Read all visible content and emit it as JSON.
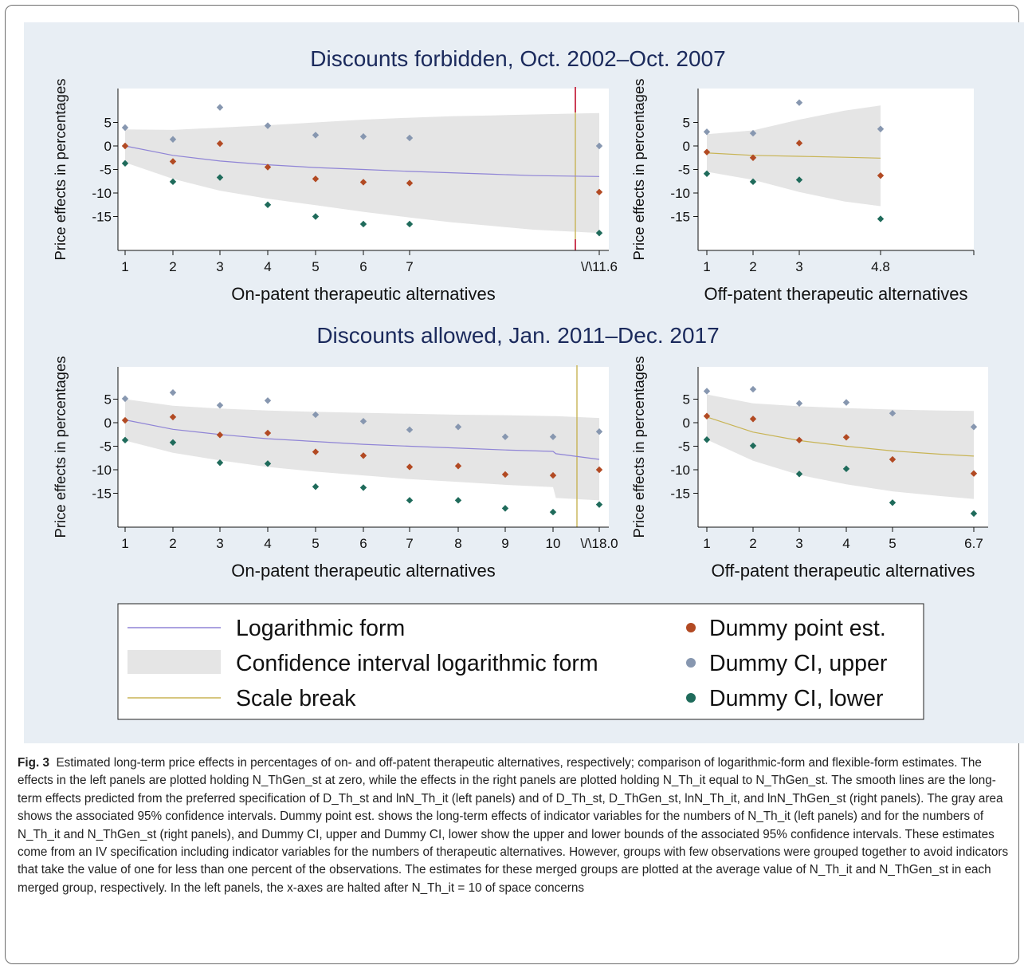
{
  "colors": {
    "fit_line_on": "#8f84d6",
    "fit_line_off": "#c8b455",
    "ci_band": "#e5e5e5",
    "point_est": "#b24a23",
    "ci_upper": "#8797b0",
    "ci_lower": "#1f6b5b",
    "scale_break": "#c8b455",
    "scale_break_top": "#c4153c",
    "plot_bg": "#e8eef4",
    "title_text": "#1b2a5c"
  },
  "chart_data": [
    {
      "id": "top-left",
      "type": "scatter",
      "panel_title": "Discounts forbidden, Oct. 2002–Oct. 2007",
      "xlabel": "On-patent therapeutic alternatives",
      "ylabel": "Price effects in percentages",
      "x_ticks": [
        "1",
        "2",
        "3",
        "4",
        "5",
        "6",
        "7",
        "\\/\\11.6"
      ],
      "y_ticks": [
        "5",
        "0",
        "-5",
        "-10",
        "-15"
      ],
      "ylim": [
        -22,
        12
      ],
      "scale_break_at": "11.6",
      "x": [
        1,
        2,
        3,
        4,
        5,
        6,
        7,
        11.6
      ],
      "point_est": [
        0,
        -3.3,
        0.5,
        -4.5,
        -7,
        -7.7,
        -7.9,
        -9.8
      ],
      "ci_upper": [
        3.9,
        1.4,
        8.2,
        4.3,
        2.3,
        2,
        1.7,
        0
      ],
      "ci_lower": [
        -3.7,
        -7.6,
        -6.7,
        -12.5,
        -15,
        -16.6,
        -16.6,
        -18.5
      ],
      "log_fit": [
        [
          1,
          0
        ],
        [
          2,
          -2
        ],
        [
          3,
          -3.2
        ],
        [
          4,
          -4
        ],
        [
          5,
          -4.6
        ],
        [
          6,
          -5
        ],
        [
          7,
          -5.4
        ],
        [
          8,
          -5.7
        ],
        [
          9,
          -6
        ],
        [
          10,
          -6.3
        ],
        [
          11.6,
          -6.5
        ]
      ],
      "ci_band_upper": [
        [
          1,
          3.5
        ],
        [
          2,
          3.4
        ],
        [
          3,
          3.9
        ],
        [
          4,
          4.4
        ],
        [
          5,
          5
        ],
        [
          6,
          5.6
        ],
        [
          7,
          6
        ],
        [
          8,
          6.3
        ],
        [
          9,
          6.5
        ],
        [
          10,
          6.7
        ],
        [
          11.6,
          7
        ]
      ],
      "ci_band_lower": [
        [
          1,
          -3.5
        ],
        [
          2,
          -7
        ],
        [
          3,
          -9.5
        ],
        [
          4,
          -11.2
        ],
        [
          5,
          -12.6
        ],
        [
          6,
          -14
        ],
        [
          7,
          -15.2
        ],
        [
          8,
          -16.2
        ],
        [
          9,
          -17
        ],
        [
          10,
          -17.8
        ],
        [
          11.6,
          -18.5
        ]
      ]
    },
    {
      "id": "top-right",
      "type": "scatter",
      "xlabel": "Off-patent therapeutic alternatives",
      "ylabel": "Price effects in percentages",
      "x_ticks": [
        "1",
        "2",
        "3",
        "4.8"
      ],
      "y_ticks": [
        "5",
        "0",
        "-5",
        "-10",
        "-15"
      ],
      "ylim": [
        -22,
        12
      ],
      "x": [
        1,
        2,
        3,
        4.8
      ],
      "point_est": [
        -1.3,
        -2.5,
        0.6,
        -6.3
      ],
      "ci_upper": [
        3,
        2.7,
        9.2,
        3.6
      ],
      "ci_lower": [
        -5.9,
        -7.6,
        -7.2,
        -15.5
      ],
      "log_fit": [
        [
          1,
          -1.5
        ],
        [
          2,
          -2
        ],
        [
          3,
          -2.2
        ],
        [
          4,
          -2.4
        ],
        [
          4.8,
          -2.6
        ]
      ],
      "ci_band_upper": [
        [
          1,
          2.5
        ],
        [
          2,
          3.3
        ],
        [
          3,
          5.6
        ],
        [
          4,
          7.5
        ],
        [
          4.8,
          8.6
        ]
      ],
      "ci_band_lower": [
        [
          1,
          -5.5
        ],
        [
          2,
          -7.2
        ],
        [
          3,
          -9.8
        ],
        [
          4,
          -11.8
        ],
        [
          4.8,
          -12.8
        ]
      ]
    },
    {
      "id": "bottom-left",
      "type": "scatter",
      "panel_title": "Discounts allowed, Jan. 2011–Dec. 2017",
      "xlabel": "On-patent therapeutic alternatives",
      "ylabel": "Price effects in percentages",
      "x_ticks": [
        "1",
        "2",
        "3",
        "4",
        "5",
        "6",
        "7",
        "8",
        "9",
        "10",
        "\\/\\18.0"
      ],
      "y_ticks": [
        "5",
        "0",
        "-5",
        "-10",
        "-15"
      ],
      "ylim": [
        -22,
        12
      ],
      "scale_break_at": "18.0",
      "x": [
        1,
        2,
        3,
        4,
        5,
        6,
        7,
        8,
        9,
        10,
        18
      ],
      "point_est": [
        0.5,
        1.2,
        -2.6,
        -2.2,
        -6.2,
        -7,
        -9.4,
        -9.2,
        -11,
        -11.2,
        -10
      ],
      "ci_upper": [
        5.1,
        6.4,
        3.7,
        4.7,
        1.7,
        0.3,
        -1.5,
        -0.9,
        -3,
        -3,
        -1.9
      ],
      "ci_lower": [
        -3.7,
        -4.2,
        -8.5,
        -8.7,
        -13.6,
        -13.8,
        -16.5,
        -16.5,
        -18.2,
        -19,
        -17.4
      ],
      "log_fit": [
        [
          1,
          0.6
        ],
        [
          2,
          -1.4
        ],
        [
          3,
          -2.5
        ],
        [
          4,
          -3.4
        ],
        [
          5,
          -4
        ],
        [
          6,
          -4.6
        ],
        [
          7,
          -5
        ],
        [
          8,
          -5.4
        ],
        [
          9,
          -5.8
        ],
        [
          10,
          -6.1
        ],
        [
          10.5,
          -6.6
        ],
        [
          18,
          -7.8
        ]
      ],
      "ci_band_upper": [
        [
          1,
          5
        ],
        [
          2,
          3.6
        ],
        [
          3,
          3
        ],
        [
          4,
          2.6
        ],
        [
          5,
          2.3
        ],
        [
          6,
          2.1
        ],
        [
          7,
          1.9
        ],
        [
          8,
          1.7
        ],
        [
          9,
          1.6
        ],
        [
          10,
          1.4
        ],
        [
          10.5,
          1.4
        ],
        [
          18,
          1
        ]
      ],
      "ci_band_lower": [
        [
          1,
          -3.8
        ],
        [
          2,
          -6.4
        ],
        [
          3,
          -8
        ],
        [
          4,
          -9.4
        ],
        [
          5,
          -10.4
        ],
        [
          6,
          -11.2
        ],
        [
          7,
          -12
        ],
        [
          8,
          -12.6
        ],
        [
          9,
          -13.2
        ],
        [
          10,
          -13.7
        ],
        [
          10.5,
          -16
        ],
        [
          18,
          -16.5
        ]
      ]
    },
    {
      "id": "bottom-right",
      "type": "scatter",
      "xlabel": "Off-patent therapeutic alternatives",
      "ylabel": "Price effects in percentages",
      "x_ticks": [
        "1",
        "2",
        "3",
        "4",
        "5",
        "6.7"
      ],
      "y_ticks": [
        "5",
        "0",
        "-5",
        "-10",
        "-15"
      ],
      "ylim": [
        -22,
        12
      ],
      "x": [
        1,
        2,
        3,
        4,
        5,
        6.7
      ],
      "point_est": [
        1.4,
        0.8,
        -3.7,
        -3.1,
        -7.8,
        -10.8
      ],
      "ci_upper": [
        6.7,
        7.1,
        4.1,
        4.3,
        2,
        -0.9
      ],
      "ci_lower": [
        -3.6,
        -4.9,
        -10.9,
        -9.8,
        -17,
        -19.3
      ],
      "log_fit": [
        [
          1,
          1.2
        ],
        [
          2,
          -2
        ],
        [
          3,
          -3.8
        ],
        [
          4,
          -5
        ],
        [
          5,
          -6
        ],
        [
          6,
          -6.7
        ],
        [
          6.7,
          -7.1
        ]
      ],
      "ci_band_upper": [
        [
          1,
          6
        ],
        [
          2,
          4.1
        ],
        [
          3,
          3.5
        ],
        [
          4,
          3.1
        ],
        [
          5,
          2.8
        ],
        [
          6,
          2.6
        ],
        [
          6.7,
          2.5
        ]
      ],
      "ci_band_lower": [
        [
          1,
          -3.6
        ],
        [
          2,
          -8.1
        ],
        [
          3,
          -11.1
        ],
        [
          4,
          -13.1
        ],
        [
          5,
          -14.6
        ],
        [
          6,
          -15.6
        ],
        [
          6.7,
          -16.2
        ]
      ]
    }
  ],
  "legend": {
    "log_form": "Logarithmic form",
    "ci_band": "Confidence interval logarithmic form",
    "scale_break": "Scale break",
    "point_est": "Dummy point est.",
    "ci_upper": "Dummy CI, upper",
    "ci_lower": "Dummy CI, lower"
  },
  "caption": {
    "label": "Fig. 3",
    "text": "Estimated long-term price effects in percentages of on- and off-patent therapeutic alternatives, respectively; comparison of logarithmic-form and flexible-form estimates. The effects in the left panels are plotted holding N_ThGen_st at zero, while the effects in the right panels are plotted holding N_Th_it equal to N_ThGen_st. The smooth lines are the long-term effects predicted from the preferred specification of D_Th_st and lnN_Th_it (left panels) and of D_Th_st, D_ThGen_st, lnN_Th_it, and lnN_ThGen_st (right panels). The gray area shows the associated 95% confidence intervals. Dummy point est. shows the long-term effects of indicator variables for the numbers of N_Th_it (left panels) and for the numbers of N_Th_it and N_ThGen_st (right panels), and Dummy CI, upper and Dummy CI, lower show the upper and lower bounds of the associated 95% confidence intervals. These estimates come from an IV specification including indicator variables for the numbers of therapeutic alternatives. However, groups with few observations were grouped together to avoid indicators that take the value of one for less than one percent of the observations. The estimates for these merged groups are plotted at the average value of N_Th_it and N_ThGen_st in each merged group, respectively. In the left panels, the x-axes are halted after N_Th_it = 10 of space concerns"
  }
}
